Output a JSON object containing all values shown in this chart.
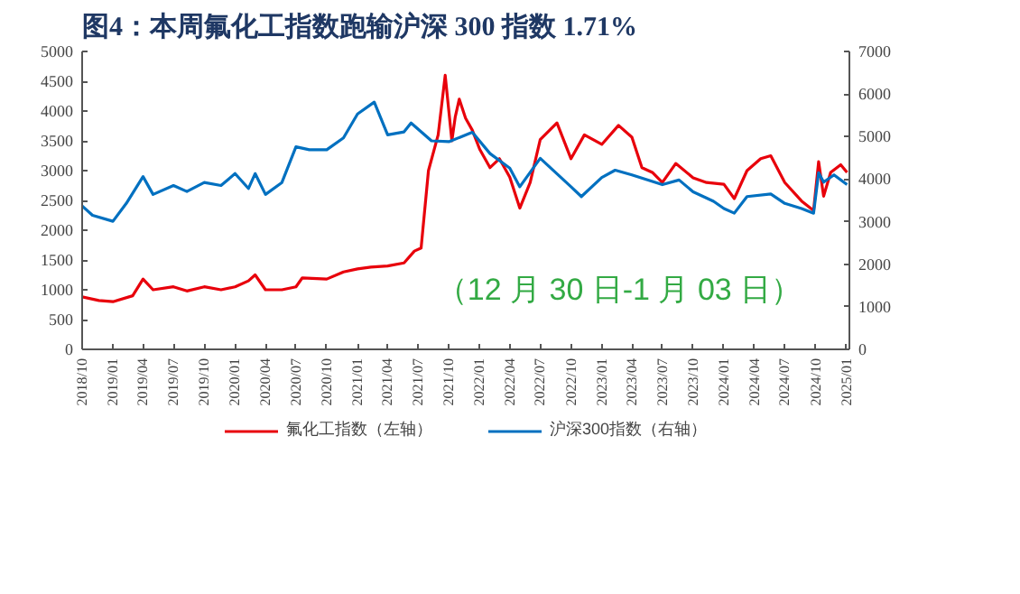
{
  "chart_data": {
    "type": "line",
    "title": "图4：本周氟化工指数跑输沪深 300 指数 1.71%",
    "annotations": [
      "（12 月 30 日-1 月 03 日）"
    ],
    "xlim": [
      "2018-10-01",
      "2025-01-10"
    ],
    "xticks": [
      {
        "value": "2018-10-01",
        "label": "2018/10"
      },
      {
        "value": "2019-01-01",
        "label": "2019/01"
      },
      {
        "value": "2019-04-01",
        "label": "2019/04"
      },
      {
        "value": "2019-07-01",
        "label": "2019/07"
      },
      {
        "value": "2019-10-01",
        "label": "2019/10"
      },
      {
        "value": "2020-01-01",
        "label": "2020/01"
      },
      {
        "value": "2020-04-01",
        "label": "2020/04"
      },
      {
        "value": "2020-07-01",
        "label": "2020/07"
      },
      {
        "value": "2020-10-01",
        "label": "2020/10"
      },
      {
        "value": "2021-01-01",
        "label": "2021/01"
      },
      {
        "value": "2021-04-01",
        "label": "2021/04"
      },
      {
        "value": "2021-07-01",
        "label": "2021/07"
      },
      {
        "value": "2021-10-01",
        "label": "2021/10"
      },
      {
        "value": "2022-01-01",
        "label": "2022/01"
      },
      {
        "value": "2022-04-01",
        "label": "2022/04"
      },
      {
        "value": "2022-07-01",
        "label": "2022/07"
      },
      {
        "value": "2022-10-01",
        "label": "2022/10"
      },
      {
        "value": "2023-01-01",
        "label": "2023/01"
      },
      {
        "value": "2023-04-01",
        "label": "2023/04"
      },
      {
        "value": "2023-07-01",
        "label": "2023/07"
      },
      {
        "value": "2023-10-01",
        "label": "2023/10"
      },
      {
        "value": "2024-01-01",
        "label": "2024/01"
      },
      {
        "value": "2024-04-01",
        "label": "2024/04"
      },
      {
        "value": "2024-07-01",
        "label": "2024/07"
      },
      {
        "value": "2024-10-01",
        "label": "2024/10"
      },
      {
        "value": "2025-01-01",
        "label": "2025/01"
      }
    ],
    "ylim": [
      0,
      5000
    ],
    "yticks": [
      0,
      500,
      1000,
      1500,
      2000,
      2500,
      3000,
      3500,
      4000,
      4500,
      5000
    ],
    "y2lim": [
      0,
      7000
    ],
    "y2ticks": [
      0,
      1000,
      2000,
      3000,
      4000,
      5000,
      6000,
      7000
    ],
    "grid": false,
    "legend": "bottom",
    "marker": "none",
    "line_style": "solid",
    "series": [
      {
        "name": "氟化工指数（左轴）",
        "color": "#e8000b",
        "x": [
          "2018-10-01",
          "2018-11-20",
          "2019-01-01",
          "2019-03-01",
          "2019-04-01",
          "2019-05-01",
          "2019-07-01",
          "2019-08-10",
          "2019-10-01",
          "2019-11-20",
          "2020-01-01",
          "2020-02-10",
          "2020-03-01",
          "2020-04-01",
          "2020-05-20",
          "2020-07-01",
          "2020-07-20",
          "2020-10-01",
          "2020-11-20",
          "2021-01-01",
          "2021-02-10",
          "2021-04-01",
          "2021-05-20",
          "2021-06-20",
          "2021-07-10",
          "2021-08-01",
          "2021-08-30",
          "2021-09-20",
          "2021-10-10",
          "2021-10-20",
          "2021-11-01",
          "2021-11-20",
          "2021-12-10",
          "2022-01-01",
          "2022-02-01",
          "2022-03-01",
          "2022-04-01",
          "2022-05-01",
          "2022-06-01",
          "2022-07-01",
          "2022-08-20",
          "2022-10-01",
          "2022-11-10",
          "2023-01-01",
          "2023-02-20",
          "2023-04-01",
          "2023-05-01",
          "2023-06-01",
          "2023-07-01",
          "2023-08-10",
          "2023-10-01",
          "2023-11-10",
          "2024-01-01",
          "2024-02-01",
          "2024-03-10",
          "2024-04-20",
          "2024-05-20",
          "2024-07-01",
          "2024-08-20",
          "2024-09-25",
          "2024-10-10",
          "2024-10-25",
          "2024-11-15",
          "2024-12-15",
          "2025-01-03"
        ],
        "values": [
          880,
          820,
          800,
          900,
          1180,
          1000,
          1050,
          980,
          1050,
          1000,
          1050,
          1150,
          1250,
          1000,
          1000,
          1050,
          1200,
          1180,
          1300,
          1350,
          1380,
          1400,
          1450,
          1650,
          1700,
          3000,
          3600,
          4600,
          3500,
          3900,
          4200,
          3880,
          3680,
          3360,
          3050,
          3200,
          2890,
          2370,
          2800,
          3520,
          3800,
          3200,
          3600,
          3440,
          3760,
          3560,
          3050,
          2970,
          2800,
          3120,
          2880,
          2800,
          2770,
          2530,
          3000,
          3200,
          3250,
          2800,
          2490,
          2330,
          3150,
          2570,
          2970,
          3100,
          2970
        ]
      },
      {
        "name": "沪深300指数（右轴）",
        "color": "#0070c0",
        "axis": "y2",
        "x": [
          "2018-10-01",
          "2018-11-01",
          "2019-01-01",
          "2019-02-10",
          "2019-04-01",
          "2019-05-01",
          "2019-07-01",
          "2019-08-10",
          "2019-10-01",
          "2019-11-20",
          "2020-01-01",
          "2020-02-10",
          "2020-03-01",
          "2020-04-01",
          "2020-05-20",
          "2020-07-01",
          "2020-08-10",
          "2020-10-01",
          "2020-11-20",
          "2021-01-01",
          "2021-02-20",
          "2021-04-01",
          "2021-05-20",
          "2021-06-10",
          "2021-08-10",
          "2021-10-01",
          "2021-12-10",
          "2022-02-01",
          "2022-04-01",
          "2022-05-01",
          "2022-07-01",
          "2022-10-01",
          "2022-11-01",
          "2023-01-01",
          "2023-02-10",
          "2023-04-01",
          "2023-07-01",
          "2023-08-20",
          "2023-10-01",
          "2023-12-01",
          "2024-01-01",
          "2024-02-01",
          "2024-03-10",
          "2024-05-20",
          "2024-07-01",
          "2024-08-20",
          "2024-09-25",
          "2024-10-10",
          "2024-10-25",
          "2024-11-25",
          "2025-01-03"
        ],
        "values": [
          3370,
          3150,
          3010,
          3430,
          4060,
          3640,
          3850,
          3710,
          3920,
          3850,
          4130,
          3780,
          4130,
          3640,
          3920,
          4760,
          4690,
          4690,
          4970,
          5530,
          5810,
          5040,
          5110,
          5320,
          4900,
          4880,
          5100,
          4600,
          4260,
          3820,
          4490,
          3820,
          3590,
          4040,
          4210,
          4100,
          3870,
          3980,
          3700,
          3480,
          3310,
          3200,
          3590,
          3650,
          3430,
          3310,
          3200,
          4150,
          3930,
          4100,
          3870
        ]
      }
    ]
  }
}
